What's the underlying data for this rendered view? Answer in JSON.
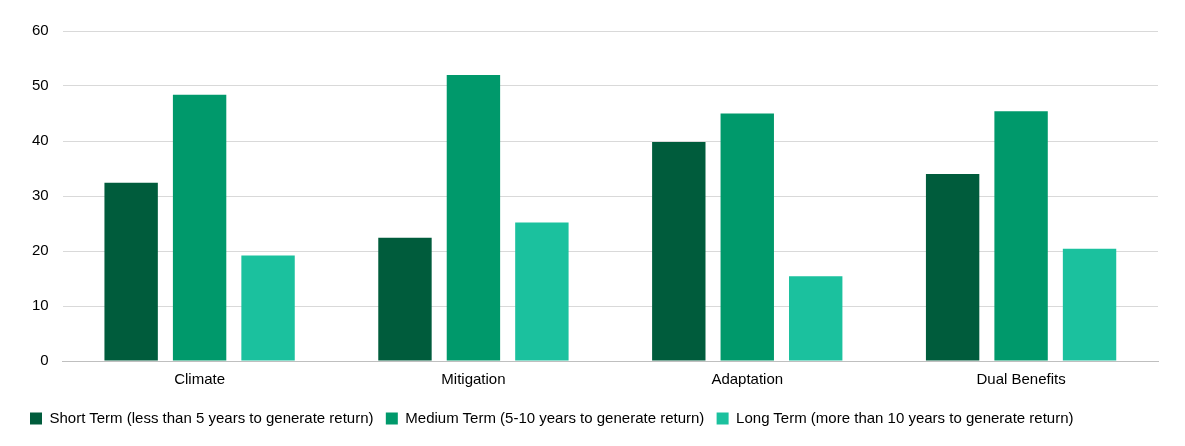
{
  "chart_data": {
    "type": "bar",
    "categories": [
      "Climate",
      "Mitigation",
      "Adaptation",
      "Dual Benefits"
    ],
    "series": [
      {
        "name": "Short Term (less than 5 years to generate return)",
        "color": "#005c3c",
        "values": [
          32.4,
          22.4,
          39.8,
          34
        ]
      },
      {
        "name": "Medium Term (5-10 years to generate return)",
        "color": "#00996b",
        "values": [
          48.4,
          52,
          45,
          45.4
        ]
      },
      {
        "name": "Long Term (more than 10 years to generate return)",
        "color": "#1bc19e",
        "values": [
          19.2,
          25.2,
          15.4,
          20.4
        ]
      }
    ],
    "ylim": [
      0,
      60
    ],
    "yticks": [
      0,
      10,
      20,
      30,
      40,
      50,
      60
    ],
    "grid": "y",
    "legend": "bottom"
  }
}
